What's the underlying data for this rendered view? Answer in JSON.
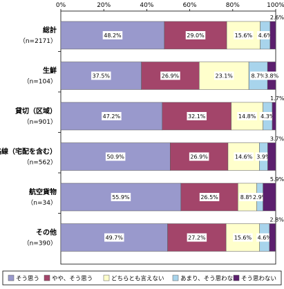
{
  "chart_data": {
    "type": "bar",
    "orientation": "horizontal",
    "stacked": true,
    "categories": [
      {
        "name": "総計",
        "sub": "（n=2171）"
      },
      {
        "name": "生鮮",
        "sub": "（n=104）"
      },
      {
        "name": "貸切（区域）",
        "sub": "（n=901）"
      },
      {
        "name": "路線（宅配を含む）",
        "sub": "（n=562）"
      },
      {
        "name": "航空貨物",
        "sub": "（n=34）"
      },
      {
        "name": "その他",
        "sub": "（n=390）"
      }
    ],
    "series": [
      {
        "name": "そう思う",
        "color": "#9999cc",
        "values": [
          48.2,
          37.5,
          47.2,
          50.9,
          55.9,
          49.7
        ]
      },
      {
        "name": "やや、そう思う",
        "color": "#a3456a",
        "values": [
          29.0,
          26.9,
          32.1,
          26.9,
          26.5,
          27.2
        ]
      },
      {
        "name": "どちらとも言えない",
        "color": "#ffffcc",
        "values": [
          15.6,
          23.1,
          14.8,
          14.6,
          8.8,
          15.6
        ]
      },
      {
        "name": "あまり、そう思わない",
        "color": "#a8d4ec",
        "values": [
          4.6,
          8.7,
          4.3,
          3.9,
          2.9,
          4.6
        ]
      },
      {
        "name": "そう思わない",
        "color": "#5c1f6e",
        "values": [
          2.6,
          3.8,
          1.7,
          3.7,
          5.9,
          2.8
        ]
      }
    ],
    "value_labels": [
      [
        "48.2%",
        "29.0%",
        "15.6%",
        "4.6%",
        "2.6%"
      ],
      [
        "37.5%",
        "26.9%",
        "23.1%",
        "8.7%",
        "3.8%"
      ],
      [
        "47.2%",
        "32.1%",
        "14.8%",
        "4.3%",
        "1.7%"
      ],
      [
        "50.9%",
        "26.9%",
        "14.6%",
        "3.9%",
        "3.7%"
      ],
      [
        "55.9%",
        "26.5%",
        "8.8%",
        "2.9%",
        "5.9%"
      ],
      [
        "49.7%",
        "27.2%",
        "15.6%",
        "4.6%",
        "2.8%"
      ]
    ],
    "external_last_label": [
      true,
      false,
      true,
      true,
      true,
      true
    ],
    "xticks": [
      "0%",
      "20%",
      "40%",
      "60%",
      "80%",
      "100%"
    ],
    "xlim": [
      0,
      100
    ],
    "legend_position": "bottom",
    "grid": false
  }
}
